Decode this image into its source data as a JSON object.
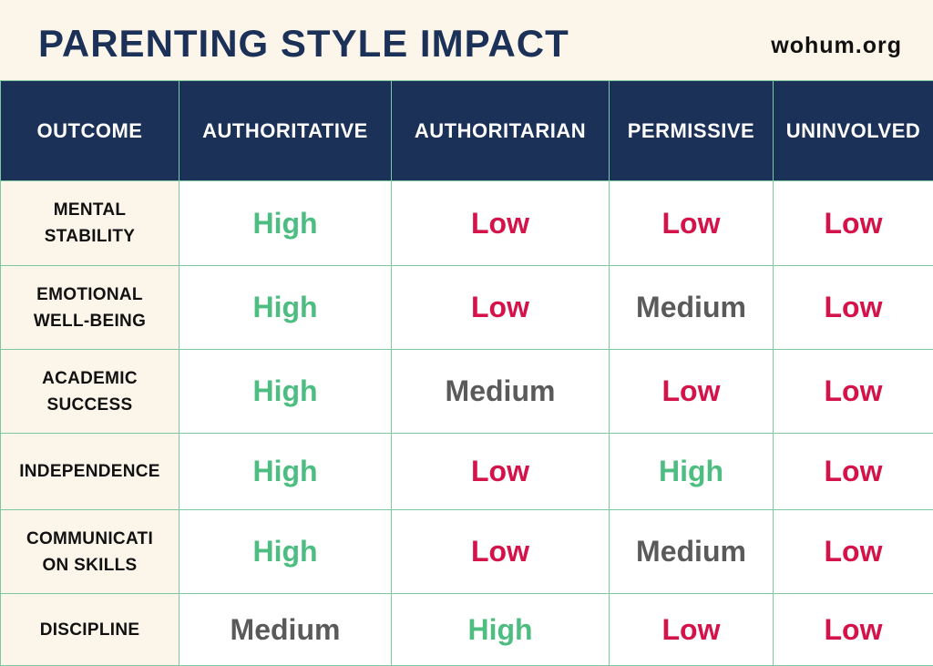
{
  "header": {
    "title": "PARENTING STYLE IMPACT",
    "site": "wohum.org"
  },
  "colors": {
    "navy": "#1b3158",
    "high": "#4dbd82",
    "low": "#d4134a",
    "medium": "#5a5a5a",
    "grid": "#7cc8a0",
    "cream": "#fcf5ea"
  },
  "table": {
    "columns": [
      "OUTCOME",
      "AUTHORITATIVE",
      "AUTHORITARIAN",
      "PERMISSIVE",
      "UNINVOLVED"
    ],
    "rows": [
      {
        "outcome": [
          "MENTAL",
          "STABILITY"
        ],
        "values": [
          "High",
          "Low",
          "Low",
          "Low"
        ]
      },
      {
        "outcome": [
          "EMOTIONAL",
          "WELL-BEING"
        ],
        "values": [
          "High",
          "Low",
          "Medium",
          "Low"
        ]
      },
      {
        "outcome": [
          "ACADEMIC",
          "SUCCESS"
        ],
        "values": [
          "High",
          "Medium",
          "Low",
          "Low"
        ]
      },
      {
        "outcome": [
          "INDEPENDENCE"
        ],
        "values": [
          "High",
          "Low",
          "High",
          "Low"
        ]
      },
      {
        "outcome": [
          "COMMUNICATI",
          "ON SKILLS"
        ],
        "values": [
          "High",
          "Low",
          "Medium",
          "Low"
        ]
      },
      {
        "outcome": [
          "DISCIPLINE"
        ],
        "values": [
          "Medium",
          "High",
          "Low",
          "Low"
        ]
      }
    ]
  }
}
